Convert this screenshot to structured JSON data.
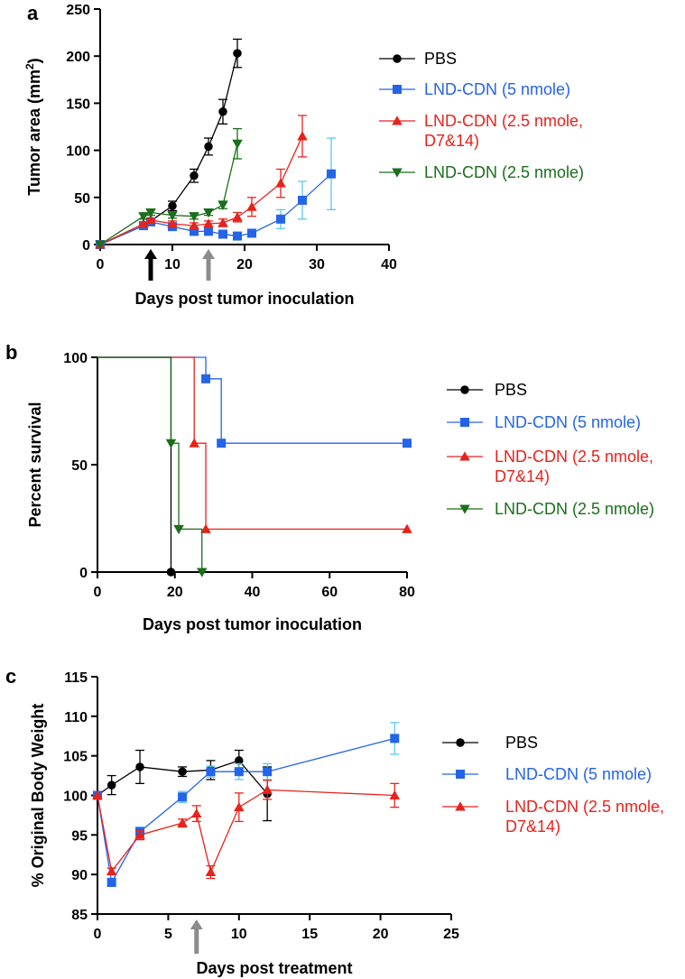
{
  "chart_data": [
    {
      "panel_label": "a",
      "type": "line",
      "xlabel": "Days post tumor inoculation",
      "ylabel": "Tumor area (mm",
      "ylabel_sup": "2",
      "ylabel_end": ")",
      "xlim": [
        0,
        40
      ],
      "ylim": [
        0,
        250
      ],
      "xticks": [
        0,
        10,
        20,
        30,
        40
      ],
      "yticks": [
        0,
        50,
        100,
        150,
        200,
        250
      ],
      "x_tick_labels": [
        "0",
        "10",
        "20",
        "30",
        "40"
      ],
      "y_tick_labels": [
        "0",
        "50",
        "100",
        "150",
        "200",
        "250"
      ],
      "treatment_days": [
        {
          "x": 7,
          "color": "#000000"
        },
        {
          "x": 15,
          "color": "#8c8c8c"
        }
      ],
      "legend": [
        "PBS",
        "LND-CDN (5 nmole)",
        "LND-CDN (2.5 nmole,",
        "D7&14)",
        "LND-CDN (2.5 nmole)"
      ],
      "series": [
        {
          "name": "PBS",
          "color": "#000000",
          "err_color": "#000000",
          "marker": "circle",
          "x": [
            0,
            6,
            7,
            10,
            13,
            15,
            17,
            19
          ],
          "y": [
            0,
            20,
            25,
            41,
            73,
            104,
            141,
            203
          ],
          "err": [
            0,
            3,
            3,
            5,
            7,
            9,
            13,
            15
          ]
        },
        {
          "name": "LND-CDN (5 nmole)",
          "color": "#2464e8",
          "err_color": "#5ec8ee",
          "marker": "square",
          "x": [
            0,
            6,
            7,
            10,
            13,
            15,
            17,
            19,
            21,
            25,
            28,
            32
          ],
          "y": [
            0,
            20,
            24,
            19,
            14,
            14,
            11,
            9,
            12,
            27,
            47,
            75
          ],
          "err": [
            0,
            2,
            2,
            3,
            3,
            3,
            3,
            3,
            3,
            10,
            20,
            38
          ]
        },
        {
          "name": "LND-CDN (2.5 nmole, D7&14)",
          "color": "#e8221c",
          "err_color": "#e8221c",
          "marker": "triangle-up",
          "x": [
            0,
            6,
            7,
            10,
            13,
            15,
            17,
            19,
            21,
            25,
            28
          ],
          "y": [
            0,
            22,
            26,
            22,
            20,
            22,
            23,
            29,
            40,
            65,
            115
          ],
          "err": [
            0,
            2,
            2,
            3,
            3,
            3,
            4,
            5,
            10,
            15,
            22
          ]
        },
        {
          "name": "LND-CDN (2.5 nmole)",
          "color": "#1b6e1b",
          "err_color": "#1b6e1b",
          "marker": "triangle-down",
          "x": [
            0,
            6,
            7,
            10,
            13,
            15,
            17,
            19
          ],
          "y": [
            0,
            30,
            34,
            31,
            30,
            34,
            42,
            107
          ],
          "err": [
            0,
            3,
            3,
            3,
            3,
            3,
            4,
            16
          ]
        }
      ]
    },
    {
      "panel_label": "b",
      "type": "line",
      "subtype": "step",
      "xlabel": "Days post tumor inoculation",
      "ylabel": "Percent survival",
      "xlim": [
        0,
        80
      ],
      "ylim": [
        0,
        100
      ],
      "xticks": [
        0,
        20,
        40,
        60,
        80
      ],
      "yticks": [
        0,
        50,
        100
      ],
      "x_tick_labels": [
        "0",
        "20",
        "40",
        "60",
        "80"
      ],
      "y_tick_labels": [
        "0",
        "50",
        "100"
      ],
      "legend": [
        "PBS",
        "LND-CDN (5 nmole)",
        "LND-CDN (2.5 nmole,",
        "D7&14)",
        "LND-CDN (2.5 nmole)"
      ],
      "series": [
        {
          "name": "PBS",
          "color": "#000000",
          "marker": "circle",
          "steps": [
            [
              0,
              100
            ],
            [
              19,
              0
            ]
          ],
          "points": [
            [
              19,
              0
            ]
          ]
        },
        {
          "name": "LND-CDN (5 nmole)",
          "color": "#2464e8",
          "marker": "square",
          "steps": [
            [
              0,
              100
            ],
            [
              28,
              90
            ],
            [
              32,
              60
            ],
            [
              80,
              60
            ]
          ],
          "points": [
            [
              28,
              90
            ],
            [
              32,
              60
            ],
            [
              80,
              60
            ]
          ]
        },
        {
          "name": "LND-CDN (2.5 nmole, D7&14)",
          "color": "#e8221c",
          "marker": "triangle-up",
          "steps": [
            [
              0,
              100
            ],
            [
              25,
              60
            ],
            [
              28,
              20
            ],
            [
              80,
              20
            ]
          ],
          "points": [
            [
              25,
              60
            ],
            [
              28,
              20
            ],
            [
              80,
              20
            ]
          ]
        },
        {
          "name": "LND-CDN (2.5 nmole)",
          "color": "#1b6e1b",
          "marker": "triangle-down",
          "steps": [
            [
              0,
              100
            ],
            [
              19,
              60
            ],
            [
              21,
              20
            ],
            [
              27,
              0
            ]
          ],
          "points": [
            [
              19,
              60
            ],
            [
              21,
              20
            ],
            [
              27,
              0
            ]
          ]
        }
      ]
    },
    {
      "panel_label": "c",
      "type": "line",
      "xlabel": "Days post treatment",
      "ylabel": "% Original Body Weight",
      "xlim": [
        0,
        25
      ],
      "ylim": [
        85,
        115
      ],
      "xticks": [
        0,
        5,
        10,
        15,
        20,
        25
      ],
      "yticks": [
        85,
        90,
        95,
        100,
        105,
        110,
        115
      ],
      "x_tick_labels": [
        "0",
        "5",
        "10",
        "15",
        "20",
        "25"
      ],
      "y_tick_labels": [
        "85",
        "90",
        "95",
        "100",
        "105",
        "110",
        "115"
      ],
      "treatment_days": [
        {
          "x": 7,
          "color": "#8c8c8c"
        }
      ],
      "legend": [
        "PBS",
        "LND-CDN (5 nmole)",
        "LND-CDN (2.5 nmole,",
        "D7&14)"
      ],
      "series": [
        {
          "name": "PBS",
          "color": "#000000",
          "err_color": "#000000",
          "marker": "circle",
          "x": [
            0,
            1,
            3,
            6,
            8,
            10,
            12
          ],
          "y": [
            100,
            101.3,
            103.6,
            103.0,
            103.2,
            104.4,
            100.2
          ],
          "err": [
            0,
            1.2,
            2.1,
            0.6,
            1.2,
            1.3,
            3.4
          ]
        },
        {
          "name": "LND-CDN (5 nmole)",
          "color": "#2464e8",
          "err_color": "#5ec8ee",
          "marker": "square",
          "x": [
            0,
            1,
            3,
            6,
            8,
            10,
            12,
            21
          ],
          "y": [
            100,
            89.0,
            95.4,
            99.8,
            103.0,
            103.0,
            103.0,
            107.2
          ],
          "err": [
            0,
            0.5,
            0.6,
            0.7,
            0.7,
            1.0,
            1.0,
            2.0
          ]
        },
        {
          "name": "LND-CDN (2.5 nmole, D7&14)",
          "color": "#e8221c",
          "err_color": "#e8221c",
          "marker": "triangle-up",
          "x": [
            0,
            1,
            3,
            6,
            7,
            8,
            10,
            12,
            21
          ],
          "y": [
            100,
            90.4,
            95.0,
            96.5,
            97.7,
            90.3,
            98.5,
            100.7,
            100.0
          ],
          "err": [
            0,
            0.4,
            0.6,
            0.5,
            1.0,
            0.8,
            1.8,
            1.2,
            1.5
          ]
        }
      ]
    }
  ]
}
